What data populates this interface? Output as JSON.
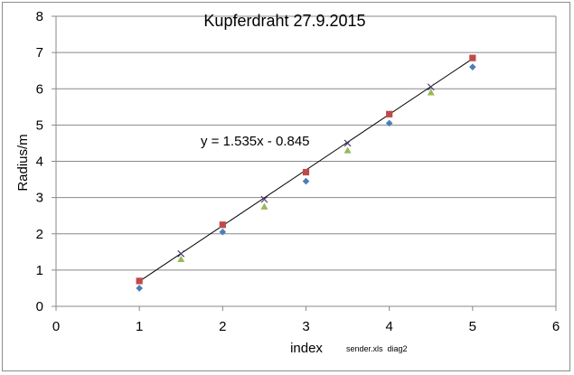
{
  "chart_data": {
    "type": "scatter",
    "title": "Kupferdraht 27.9.2015",
    "xlabel": "index",
    "ylabel": "Radius/m",
    "xlim": [
      0,
      6
    ],
    "ylim": [
      0,
      8
    ],
    "x_ticks": [
      "0",
      "1",
      "2",
      "3",
      "4",
      "5",
      "6"
    ],
    "y_ticks": [
      "0",
      "1",
      "2",
      "3",
      "4",
      "5",
      "6",
      "7",
      "8"
    ],
    "grid": "horizontal",
    "legend": "none",
    "annotations": {
      "equation": "y = 1.535x - 0.845",
      "source_note": "sender.xls  diag2"
    },
    "series": [
      {
        "marker": "diamond",
        "color": "#4a7ebb",
        "x": [
          1,
          2,
          3,
          4,
          5
        ],
        "y": [
          0.5,
          2.05,
          3.45,
          5.05,
          6.6
        ]
      },
      {
        "marker": "square",
        "color": "#be4b48",
        "x": [
          1,
          2,
          3,
          4,
          5
        ],
        "y": [
          0.7,
          2.25,
          3.7,
          5.3,
          6.85
        ]
      },
      {
        "marker": "triangle",
        "color": "#98b954",
        "x": [
          1.5,
          2.5,
          3.5,
          4.5
        ],
        "y": [
          1.3,
          2.75,
          4.3,
          5.9
        ]
      },
      {
        "marker": "x",
        "color": "#4b3a73",
        "x": [
          1.5,
          2.5,
          3.5,
          4.5
        ],
        "y": [
          1.45,
          2.95,
          4.5,
          6.05
        ]
      }
    ],
    "trendline": {
      "slope": 1.535,
      "intercept": -0.845,
      "x_range": [
        1,
        5
      ],
      "color": "#000000"
    }
  }
}
